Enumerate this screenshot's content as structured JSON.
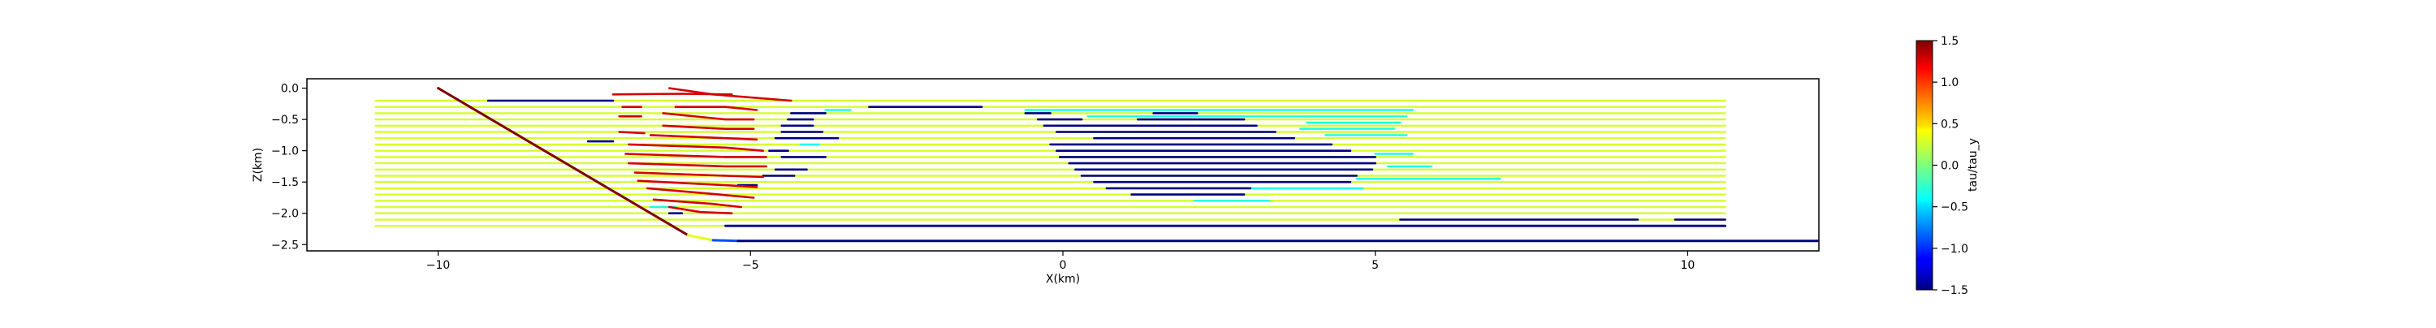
{
  "chart_data": {
    "type": "line",
    "xlabel": "X(km)",
    "ylabel": "Z(km)",
    "xlim": [
      -12.1,
      12.1
    ],
    "ylim": [
      -2.6,
      0.15
    ],
    "xticks": [
      -10,
      -5,
      0,
      5,
      10
    ],
    "yticks": [
      0.0,
      -0.5,
      -1.0,
      -1.5,
      -2.0,
      -2.5
    ],
    "xtick_labels": [
      "−10",
      "−5",
      "0",
      "5",
      "10"
    ],
    "ytick_labels": [
      "0.0",
      "−0.5",
      "−1.0",
      "−1.5",
      "−2.0",
      "−2.5"
    ],
    "grid": false,
    "colorbar": {
      "label": "tau/tau_y",
      "min": -1.5,
      "max": 1.5,
      "ticks": [
        1.5,
        1.0,
        0.5,
        0.0,
        -0.5,
        -1.0,
        -1.5
      ],
      "tick_labels": [
        "1.5",
        "1.0",
        "0.5",
        "0.0",
        "−0.5",
        "−1.0",
        "−1.5"
      ],
      "colormap": "jet"
    },
    "background_layers": {
      "x_range": [
        -11.0,
        10.6
      ],
      "z_values": [
        -0.2,
        -0.3,
        -0.4,
        -0.5,
        -0.6,
        -0.7,
        -0.8,
        -0.9,
        -1.0,
        -1.1,
        -1.2,
        -1.3,
        -1.4,
        -1.5,
        -1.6,
        -1.7,
        -1.8,
        -1.9,
        -2.0,
        -2.1,
        -2.2
      ],
      "value": 0.25
    },
    "fault": {
      "points": [
        [
          -10.0,
          0.0
        ],
        [
          -6.0,
          -2.35
        ],
        [
          -5.6,
          -2.43
        ],
        [
          -5.2,
          -2.44
        ],
        [
          12.1,
          -2.44
        ]
      ],
      "value_start": 1.5,
      "value_end": -1.5
    },
    "basal_line": {
      "points": [
        [
          -5.4,
          -2.2
        ],
        [
          10.6,
          -2.2
        ]
      ],
      "value": -1.5
    },
    "high_stress_curves": [
      {
        "value": 1.25,
        "points": [
          [
            -7.2,
            -0.1
          ],
          [
            -6.1,
            -0.09
          ],
          [
            -5.3,
            -0.1
          ]
        ]
      },
      {
        "value": 1.25,
        "points": [
          [
            -6.3,
            0.0
          ],
          [
            -5.6,
            -0.1
          ],
          [
            -4.35,
            -0.2
          ]
        ]
      },
      {
        "value": 1.25,
        "points": [
          [
            -7.05,
            -0.3
          ],
          [
            -6.75,
            -0.3
          ]
        ]
      },
      {
        "value": 1.25,
        "points": [
          [
            -6.2,
            -0.3
          ],
          [
            -5.4,
            -0.3
          ],
          [
            -4.9,
            -0.35
          ]
        ]
      },
      {
        "value": 1.25,
        "points": [
          [
            -7.1,
            -0.45
          ],
          [
            -6.75,
            -0.45
          ]
        ]
      },
      {
        "value": 1.25,
        "points": [
          [
            -6.4,
            -0.4
          ],
          [
            -5.4,
            -0.5
          ],
          [
            -4.95,
            -0.5
          ]
        ]
      },
      {
        "value": 1.25,
        "points": [
          [
            -6.4,
            -0.6
          ],
          [
            -5.4,
            -0.65
          ],
          [
            -4.95,
            -0.65
          ]
        ]
      },
      {
        "value": 1.25,
        "points": [
          [
            -7.1,
            -0.7
          ],
          [
            -6.7,
            -0.72
          ]
        ]
      },
      {
        "value": 1.25,
        "points": [
          [
            -6.6,
            -0.75
          ],
          [
            -5.4,
            -0.8
          ],
          [
            -4.9,
            -0.82
          ]
        ]
      },
      {
        "value": 1.25,
        "points": [
          [
            -6.95,
            -0.9
          ],
          [
            -5.4,
            -0.95
          ],
          [
            -4.8,
            -1.0
          ]
        ]
      },
      {
        "value": 1.25,
        "points": [
          [
            -7.0,
            -1.05
          ],
          [
            -5.4,
            -1.1
          ],
          [
            -4.75,
            -1.1
          ]
        ]
      },
      {
        "value": 1.25,
        "points": [
          [
            -6.95,
            -1.2
          ],
          [
            -5.4,
            -1.25
          ],
          [
            -4.75,
            -1.25
          ]
        ]
      },
      {
        "value": 1.25,
        "points": [
          [
            -6.85,
            -1.35
          ],
          [
            -5.4,
            -1.4
          ],
          [
            -4.8,
            -1.42
          ]
        ]
      },
      {
        "value": 1.25,
        "points": [
          [
            -6.8,
            -1.48
          ],
          [
            -5.4,
            -1.55
          ],
          [
            -4.9,
            -1.58
          ]
        ]
      },
      {
        "value": 1.25,
        "points": [
          [
            -6.65,
            -1.6
          ],
          [
            -5.5,
            -1.7
          ],
          [
            -4.95,
            -1.75
          ]
        ]
      },
      {
        "value": 1.25,
        "points": [
          [
            -6.55,
            -1.78
          ],
          [
            -5.6,
            -1.85
          ],
          [
            -5.15,
            -1.9
          ]
        ]
      },
      {
        "value": 1.25,
        "points": [
          [
            -6.3,
            -1.9
          ],
          [
            -5.8,
            -1.98
          ],
          [
            -5.3,
            -2.0
          ]
        ]
      }
    ],
    "low_stress_segments": [
      {
        "value": -1.5,
        "points": [
          [
            -9.2,
            -0.2
          ],
          [
            -7.2,
            -0.2
          ]
        ]
      },
      {
        "value": -1.5,
        "points": [
          [
            -7.6,
            -0.85
          ],
          [
            -7.2,
            -0.85
          ]
        ]
      },
      {
        "value": -1.5,
        "points": [
          [
            -3.1,
            -0.3
          ],
          [
            -1.3,
            -0.3
          ]
        ]
      },
      {
        "value": -1.5,
        "points": [
          [
            -4.35,
            -0.4
          ],
          [
            -3.8,
            -0.4
          ]
        ]
      },
      {
        "value": -1.5,
        "points": [
          [
            -4.4,
            -0.5
          ],
          [
            -4.0,
            -0.5
          ]
        ]
      },
      {
        "value": -1.5,
        "points": [
          [
            -4.5,
            -0.6
          ],
          [
            -4.0,
            -0.6
          ]
        ]
      },
      {
        "value": -1.5,
        "points": [
          [
            -4.5,
            -0.7
          ],
          [
            -3.85,
            -0.7
          ]
        ]
      },
      {
        "value": -1.5,
        "points": [
          [
            -4.6,
            -0.8
          ],
          [
            -3.6,
            -0.8
          ]
        ]
      },
      {
        "value": -1.5,
        "points": [
          [
            -4.7,
            -1.0
          ],
          [
            -4.4,
            -1.0
          ]
        ]
      },
      {
        "value": -1.5,
        "points": [
          [
            -4.5,
            -1.1
          ],
          [
            -3.8,
            -1.1
          ]
        ]
      },
      {
        "value": -1.5,
        "points": [
          [
            -4.6,
            -1.3
          ],
          [
            -4.1,
            -1.3
          ]
        ]
      },
      {
        "value": -1.5,
        "points": [
          [
            -4.8,
            -1.4
          ],
          [
            -4.3,
            -1.4
          ]
        ]
      },
      {
        "value": -1.5,
        "points": [
          [
            -5.2,
            -1.55
          ],
          [
            -4.9,
            -1.55
          ]
        ]
      },
      {
        "value": -1.5,
        "points": [
          [
            -6.3,
            -2.0
          ],
          [
            -6.1,
            -2.0
          ]
        ]
      },
      {
        "value": -1.5,
        "points": [
          [
            -0.6,
            -0.4
          ],
          [
            -0.2,
            -0.4
          ]
        ]
      },
      {
        "value": -1.5,
        "points": [
          [
            1.45,
            -0.4
          ],
          [
            2.15,
            -0.4
          ]
        ]
      },
      {
        "value": -1.5,
        "points": [
          [
            -0.4,
            -0.5
          ],
          [
            0.3,
            -0.5
          ]
        ]
      },
      {
        "value": -1.5,
        "points": [
          [
            1.2,
            -0.5
          ],
          [
            2.9,
            -0.5
          ]
        ]
      },
      {
        "value": -1.5,
        "points": [
          [
            -0.3,
            -0.6
          ],
          [
            3.1,
            -0.6
          ]
        ]
      },
      {
        "value": -1.5,
        "points": [
          [
            -0.1,
            -0.7
          ],
          [
            3.4,
            -0.7
          ]
        ]
      },
      {
        "value": -1.5,
        "points": [
          [
            0.5,
            -0.8
          ],
          [
            3.7,
            -0.8
          ]
        ]
      },
      {
        "value": -1.5,
        "points": [
          [
            -0.2,
            -0.9
          ],
          [
            4.3,
            -0.9
          ]
        ]
      },
      {
        "value": -1.5,
        "points": [
          [
            -0.1,
            -1.0
          ],
          [
            4.6,
            -1.0
          ]
        ]
      },
      {
        "value": -1.5,
        "points": [
          [
            -0.05,
            -1.1
          ],
          [
            5.0,
            -1.1
          ]
        ]
      },
      {
        "value": -1.5,
        "points": [
          [
            0.1,
            -1.2
          ],
          [
            5.0,
            -1.2
          ]
        ]
      },
      {
        "value": -1.5,
        "points": [
          [
            0.2,
            -1.3
          ],
          [
            4.95,
            -1.3
          ]
        ]
      },
      {
        "value": -1.5,
        "points": [
          [
            0.3,
            -1.4
          ],
          [
            4.7,
            -1.4
          ]
        ]
      },
      {
        "value": -1.5,
        "points": [
          [
            0.5,
            -1.5
          ],
          [
            4.6,
            -1.5
          ]
        ]
      },
      {
        "value": -1.5,
        "points": [
          [
            0.7,
            -1.6
          ],
          [
            3.0,
            -1.6
          ]
        ]
      },
      {
        "value": -1.5,
        "points": [
          [
            1.1,
            -1.7
          ],
          [
            2.9,
            -1.7
          ]
        ]
      },
      {
        "value": -1.5,
        "points": [
          [
            5.4,
            -2.1
          ],
          [
            9.2,
            -2.1
          ]
        ]
      },
      {
        "value": -1.5,
        "points": [
          [
            9.8,
            -2.1
          ],
          [
            10.6,
            -2.1
          ]
        ]
      }
    ],
    "cyan_segments": [
      {
        "value": -0.3,
        "points": [
          [
            -0.6,
            -0.35
          ],
          [
            5.6,
            -0.35
          ]
        ]
      },
      {
        "value": -0.3,
        "points": [
          [
            0.4,
            -0.45
          ],
          [
            5.5,
            -0.45
          ]
        ]
      },
      {
        "value": -0.3,
        "points": [
          [
            3.9,
            -0.55
          ],
          [
            5.4,
            -0.55
          ]
        ]
      },
      {
        "value": -0.3,
        "points": [
          [
            3.8,
            -0.65
          ],
          [
            5.3,
            -0.65
          ]
        ]
      },
      {
        "value": -0.3,
        "points": [
          [
            4.2,
            -0.75
          ],
          [
            5.5,
            -0.75
          ]
        ]
      },
      {
        "value": -0.3,
        "points": [
          [
            -4.2,
            -0.9
          ],
          [
            -3.9,
            -0.9
          ]
        ]
      },
      {
        "value": -0.3,
        "points": [
          [
            5.0,
            -1.05
          ],
          [
            5.6,
            -1.05
          ]
        ]
      },
      {
        "value": -0.3,
        "points": [
          [
            5.2,
            -1.25
          ],
          [
            5.9,
            -1.25
          ]
        ]
      },
      {
        "value": -0.3,
        "points": [
          [
            4.7,
            -1.45
          ],
          [
            7.0,
            -1.45
          ]
        ]
      },
      {
        "value": -0.3,
        "points": [
          [
            3.0,
            -1.6
          ],
          [
            4.8,
            -1.6
          ]
        ]
      },
      {
        "value": -0.3,
        "points": [
          [
            2.1,
            -1.8
          ],
          [
            3.3,
            -1.8
          ]
        ]
      },
      {
        "value": -0.3,
        "points": [
          [
            -6.6,
            -1.9
          ],
          [
            -6.2,
            -1.9
          ]
        ]
      },
      {
        "value": -0.3,
        "points": [
          [
            -3.8,
            -0.35
          ],
          [
            -3.4,
            -0.35
          ]
        ]
      }
    ]
  }
}
